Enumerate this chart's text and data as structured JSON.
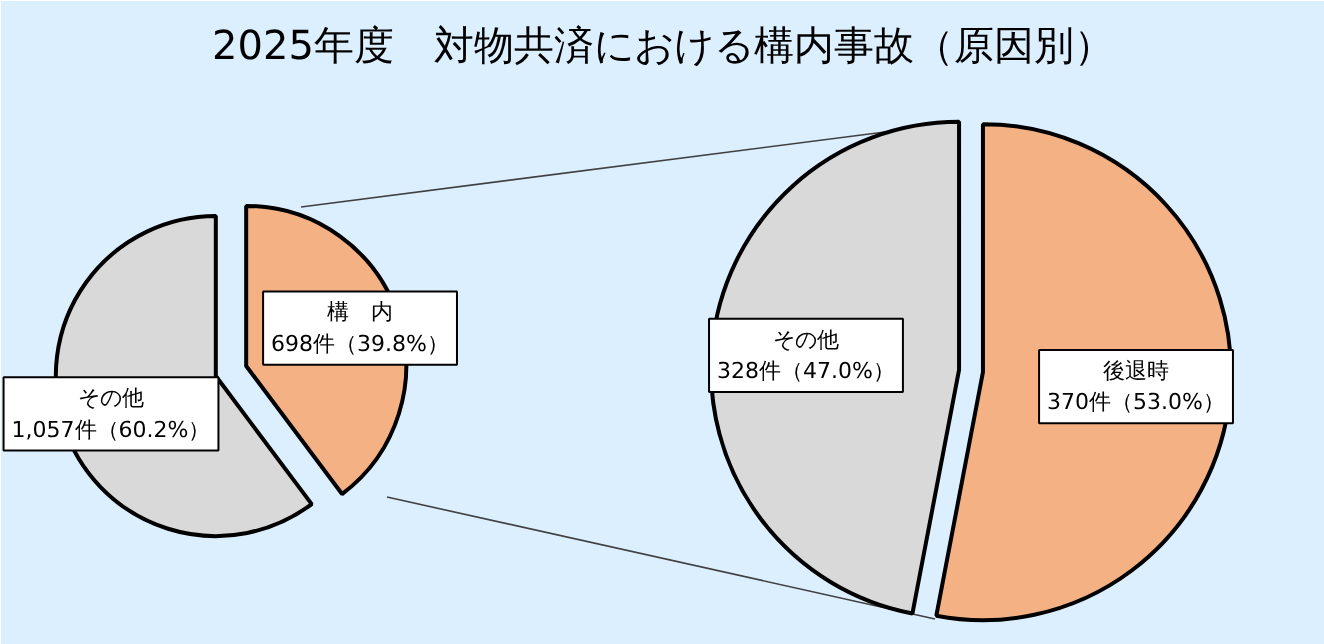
{
  "chart_data": [
    {
      "type": "pie",
      "title": "2025年度　対物共済における構内事故（原因別）",
      "categories": [
        "その他",
        "構　内"
      ],
      "values": [
        1057,
        698
      ],
      "colors": [
        "#d9d9d9",
        "#f4b183"
      ],
      "value_labels": [
        "1,057件（60.2%）",
        "698件（39.8%）"
      ]
    },
    {
      "type": "pie",
      "categories": [
        "その他",
        "後退時"
      ],
      "values": [
        328,
        370
      ],
      "colors": [
        "#d9d9d9",
        "#f4b183"
      ],
      "value_labels": [
        "328件（47.0%）",
        "370件（53.0%）"
      ]
    }
  ]
}
